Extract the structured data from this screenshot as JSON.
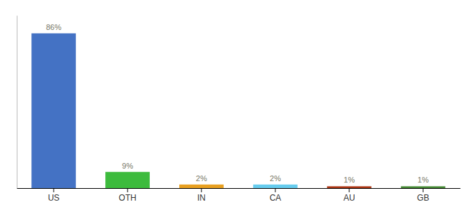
{
  "chart_data": {
    "type": "bar",
    "categories": [
      "US",
      "OTH",
      "IN",
      "CA",
      "AU",
      "GB"
    ],
    "values": [
      86,
      9,
      2,
      2,
      1,
      1
    ],
    "value_labels": [
      "86%",
      "9%",
      "2%",
      "2%",
      "1%",
      "1%"
    ],
    "colors": [
      "#4472C4",
      "#3DBB3D",
      "#E8A020",
      "#66CCEE",
      "#AA3311",
      "#448833"
    ],
    "ylim": [
      0,
      96
    ],
    "data_labels": true,
    "tick_labels": "x",
    "grid": false
  }
}
